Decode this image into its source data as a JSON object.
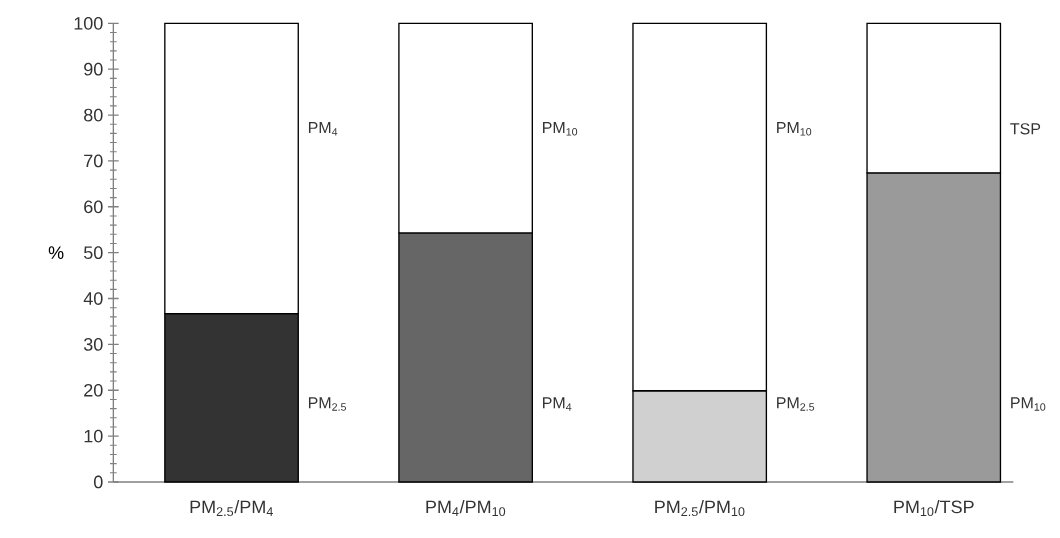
{
  "chart_data": {
    "type": "bar",
    "stacked": true,
    "ylabel": "%",
    "categories": [
      "PM$_{2.5}$/PM$_{4}$",
      "PM$_{4}$/PM$_{10}$",
      "PM$_{2.5}$/PM$_{10}$",
      "PM$_{10}$/TSP"
    ],
    "series": [
      {
        "colors": [
          "#333333",
          "#666666",
          "#d0d0d0",
          "#9a9a9a"
        ],
        "values": [
          36.7,
          54.3,
          19.9,
          67.4
        ]
      },
      {
        "color": "#ffffff",
        "values": [
          63.3,
          45.7,
          80.1,
          32.6
        ]
      }
    ],
    "ylim": [
      0,
      100
    ],
    "yticks": [
      0,
      10,
      20,
      30,
      40,
      50,
      60,
      70,
      80,
      90,
      100
    ],
    "annotations": [
      "PM$_{4}$",
      "PM$_{2.5}$",
      "PM$_{10}$",
      "PM$_{4}$",
      "PM$_{10}$",
      "PM$_{2.5}$",
      "TSP",
      "PM$_{10}$"
    ]
  }
}
